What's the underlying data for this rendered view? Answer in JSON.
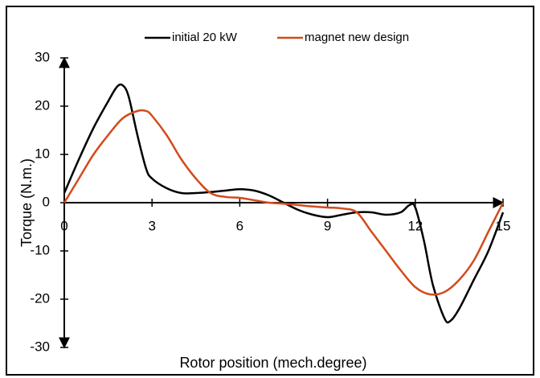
{
  "chart_data": {
    "type": "line",
    "x_label": "Rotor position (mech.degree)",
    "y_label": "Torque (N.m.)",
    "xlim": [
      0,
      15
    ],
    "xticks": [
      0,
      3,
      6,
      9,
      12,
      15
    ],
    "ylim": [
      -30,
      30
    ],
    "yticks": [
      -30,
      -20,
      -10,
      0,
      10,
      20,
      30
    ],
    "series": [
      {
        "name": "initial 20 kW",
        "color": "#000000",
        "x": [
          0,
          0.5,
          1,
          1.5,
          1.8,
          2,
          2.2,
          2.5,
          2.8,
          3,
          3.5,
          4,
          4.5,
          5,
          5.5,
          6,
          6.5,
          7,
          7.5,
          8,
          8.5,
          9,
          9.5,
          10,
          10.5,
          11,
          11.5,
          11.8,
          12,
          12.3,
          12.6,
          13,
          13.2,
          13.5,
          14,
          14.5,
          15
        ],
        "values": [
          2,
          9,
          15.5,
          21,
          24,
          24.3,
          22,
          14,
          7,
          5,
          3,
          2,
          2,
          2.2,
          2.5,
          2.8,
          2.5,
          1.5,
          0,
          -1.5,
          -2.5,
          -3,
          -2.5,
          -2,
          -2,
          -2.5,
          -2,
          -0.5,
          -1,
          -8,
          -17,
          -24,
          -24.5,
          -22,
          -16,
          -10,
          -2
        ]
      },
      {
        "name": "magnet new design",
        "color": "#d24b1c",
        "x": [
          0,
          0.5,
          1,
          1.5,
          2,
          2.5,
          2.8,
          3,
          3.5,
          4,
          4.5,
          5,
          5.5,
          6,
          6.5,
          7,
          7.5,
          8,
          8.5,
          9,
          9.5,
          10,
          10.5,
          11,
          11.5,
          12,
          12.5,
          13,
          13.5,
          14,
          14.5,
          15
        ],
        "values": [
          0,
          5,
          10,
          14,
          17.5,
          19,
          19,
          18,
          14,
          9,
          5,
          2,
          1.2,
          1,
          0.5,
          0,
          -0.2,
          -0.5,
          -0.8,
          -1,
          -1.2,
          -2,
          -6,
          -10,
          -14,
          -17.5,
          -19,
          -18.5,
          -16,
          -12,
          -6,
          0
        ]
      }
    ]
  }
}
